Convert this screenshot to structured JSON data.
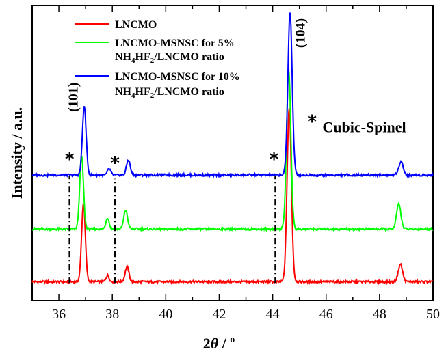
{
  "chart_data": {
    "type": "line",
    "title": "",
    "xlabel_main": "2",
    "xlabel_theta": "θ",
    "xlabel_unit": " / ",
    "xlabel_degree": "o",
    "ylabel": "Intensity / a.u.",
    "xlim": [
      35,
      50
    ],
    "xticks": [
      36,
      38,
      40,
      42,
      44,
      46,
      48,
      50
    ],
    "grid": false,
    "legend_position": "top-left",
    "series": [
      {
        "legend_lines": [
          "LNCMO"
        ],
        "legend_sub": null,
        "color": "#ff0000",
        "baseline": 0.0,
        "peaks": [
          {
            "x": 36.92,
            "h": 0.62,
            "w": 0.07
          },
          {
            "x": 37.82,
            "h": 0.05,
            "w": 0.06
          },
          {
            "x": 38.55,
            "h": 0.12,
            "w": 0.07
          },
          {
            "x": 44.62,
            "h": 1.38,
            "w": 0.08
          },
          {
            "x": 48.78,
            "h": 0.14,
            "w": 0.08
          }
        ]
      },
      {
        "legend_lines": [
          "LNCMO-MSNSC for 5%",
          "NH4HF2/LNCMO ratio"
        ],
        "legend_sub": {
          "line": 1,
          "prefix": "NH",
          "s1": "4",
          "mid": "HF",
          "s2": "2",
          "suffix": "/LNCMO ratio"
        },
        "color": "#00ff00",
        "baseline": 0.42,
        "peaks": [
          {
            "x": 36.85,
            "h": 0.58,
            "w": 0.07
          },
          {
            "x": 37.82,
            "h": 0.09,
            "w": 0.06
          },
          {
            "x": 38.5,
            "h": 0.15,
            "w": 0.07
          },
          {
            "x": 44.6,
            "h": 1.27,
            "w": 0.08
          },
          {
            "x": 48.72,
            "h": 0.2,
            "w": 0.08
          }
        ]
      },
      {
        "legend_lines": [
          "LNCMO-MSNSC for 10%",
          "NH4HF2/LNCMO ratio"
        ],
        "legend_sub": {
          "line": 1,
          "prefix": "NH",
          "s1": "4",
          "mid": "HF",
          "s2": "2",
          "suffix": "/LNCMO ratio"
        },
        "color": "#0000ff",
        "baseline": 0.85,
        "peaks": [
          {
            "x": 36.95,
            "h": 0.55,
            "w": 0.07
          },
          {
            "x": 37.88,
            "h": 0.05,
            "w": 0.06
          },
          {
            "x": 38.6,
            "h": 0.12,
            "w": 0.07
          },
          {
            "x": 44.65,
            "h": 1.3,
            "w": 0.08
          },
          {
            "x": 48.8,
            "h": 0.11,
            "w": 0.08
          }
        ]
      }
    ],
    "ylim": [
      -0.15,
      2.2
    ],
    "peak_labels": [
      {
        "text": "(101)",
        "x": 36.7,
        "y": 1.47
      },
      {
        "text": "(104)",
        "x": 45.2,
        "y": 1.98
      }
    ],
    "star_marks": [
      {
        "x": 36.4,
        "y": 0.93
      },
      {
        "x": 38.1,
        "y": 0.9
      },
      {
        "x": 44.05,
        "y": 0.93
      }
    ],
    "dashed_lines": [
      {
        "x": 36.4,
        "y1": -0.01,
        "y2": 0.84
      },
      {
        "x": 38.1,
        "y1": -0.01,
        "y2": 0.82
      },
      {
        "x": 44.1,
        "y1": -0.01,
        "y2": 0.84
      }
    ],
    "annotation": {
      "star": "*",
      "text": "Cubic-Spinel",
      "x": 45.3,
      "y": 1.23
    }
  }
}
